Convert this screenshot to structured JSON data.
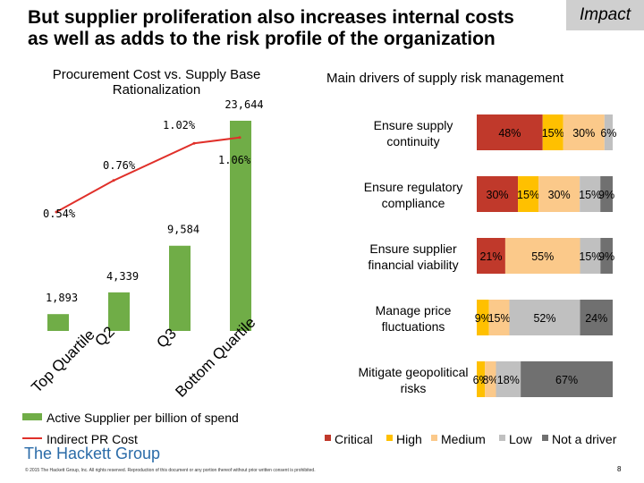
{
  "slide": {
    "title": "But supplier proliferation also increases internal costs as well as adds to the risk profile of the organization",
    "badge": "Impact",
    "left_subtitle": "Procurement Cost vs. Supply Base Rationalization",
    "right_subtitle": "Main drivers of supply risk management",
    "footer": "© 2015 The Hackett Group, Inc. All rights reserved. Reproduction of this document or any portion thereof without prior written consent is prohibited.",
    "page_number": "8",
    "logo_text": "The Hackett Group"
  },
  "chart_data": [
    {
      "type": "bar",
      "categories": [
        "Top Quartile",
        "Q2",
        "Q3",
        "Bottom Quartile"
      ],
      "series": [
        {
          "name": "Active Supplier per billion of spend",
          "values": [
            1893,
            4339,
            9584,
            23644
          ],
          "labels": [
            "1,893",
            "4,339",
            "9,584",
            "23,644"
          ],
          "color": "#70ad47"
        },
        {
          "name": "Indirect PR Cost",
          "type": "line",
          "values": [
            0.54,
            0.76,
            1.02,
            1.06
          ],
          "labels": [
            "0.54%",
            "0.76%",
            "1.02%",
            "1.06%"
          ],
          "color": "#e0302a"
        }
      ],
      "legend": [
        "Active Supplier per billion of spend",
        "Indirect PR Cost"
      ]
    },
    {
      "type": "bar",
      "stacked": true,
      "orientation": "horizontal",
      "categories": [
        "Ensure supply continuity",
        "Ensure regulatory compliance",
        "Ensure supplier financial viability",
        "Manage price fluctuations",
        "Mitigate geopolitical risks"
      ],
      "series": [
        {
          "name": "Critical",
          "color": "#c0392b",
          "values": [
            48,
            30,
            21,
            0,
            0
          ]
        },
        {
          "name": "High",
          "color": "#ffc000",
          "values": [
            15,
            15,
            0,
            9,
            6
          ]
        },
        {
          "name": "Medium",
          "color": "#fbc98a",
          "values": [
            30,
            30,
            55,
            15,
            8
          ]
        },
        {
          "name": "Low",
          "color": "#c0c0c0",
          "values": [
            6,
            15,
            15,
            52,
            18
          ]
        },
        {
          "name": "Not a driver",
          "color": "#707070",
          "values": [
            0,
            9,
            9,
            24,
            67
          ]
        }
      ],
      "labels": [
        [
          "48%",
          "15%",
          "30%",
          "6%"
        ],
        [
          "30%",
          "15%",
          "30%",
          "15%",
          "9%"
        ],
        [
          "21%",
          "55%",
          "15%",
          "9%"
        ],
        [
          "9%",
          "15%",
          "52%",
          "24%"
        ],
        [
          "6%",
          "8%",
          "18%",
          "67%"
        ]
      ],
      "legend": [
        "Critical",
        "High",
        "Medium",
        "Low",
        "Not a driver"
      ]
    }
  ]
}
